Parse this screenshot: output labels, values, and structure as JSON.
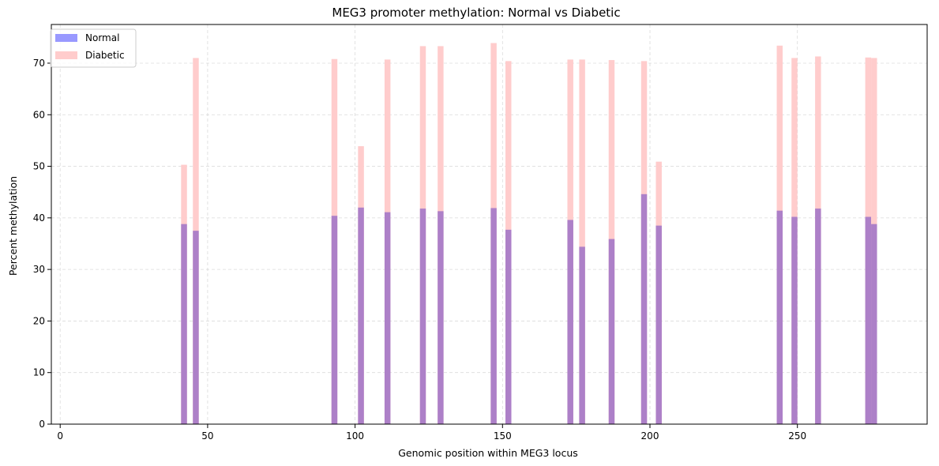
{
  "chart_data": {
    "type": "bar",
    "title": "MEG3 promoter methylation: Normal vs Diabetic",
    "xlabel": "Genomic position within MEG3 locus",
    "ylabel": "Percent methylation",
    "xlim": [
      -3,
      294
    ],
    "ylim": [
      0,
      77.5
    ],
    "xticks": [
      0,
      50,
      100,
      150,
      200,
      250
    ],
    "yticks": [
      0,
      10,
      20,
      30,
      40,
      50,
      60,
      70
    ],
    "grid": true,
    "legend_position": "top-left",
    "bar_width": 2,
    "x": [
      42,
      46,
      93,
      102,
      111,
      123,
      129,
      147,
      152,
      173,
      177,
      187,
      198,
      203,
      244,
      249,
      257,
      274,
      276
    ],
    "series": [
      {
        "name": "Normal",
        "color": "#9999ff",
        "values": [
          38.8,
          37.5,
          40.4,
          42.0,
          41.1,
          41.8,
          41.3,
          41.9,
          37.7,
          39.6,
          34.4,
          35.9,
          44.6,
          38.5,
          41.4,
          40.2,
          41.8,
          40.2,
          38.8
        ]
      },
      {
        "name": "Diabetic",
        "color": "#ffcccc",
        "values": [
          50.3,
          71.0,
          70.8,
          53.9,
          70.7,
          73.3,
          73.3,
          73.9,
          70.4,
          70.7,
          70.7,
          70.6,
          70.4,
          50.9,
          73.4,
          71.0,
          71.3,
          71.1,
          71.0
        ]
      }
    ],
    "overlap_color": "#ad80c8"
  }
}
